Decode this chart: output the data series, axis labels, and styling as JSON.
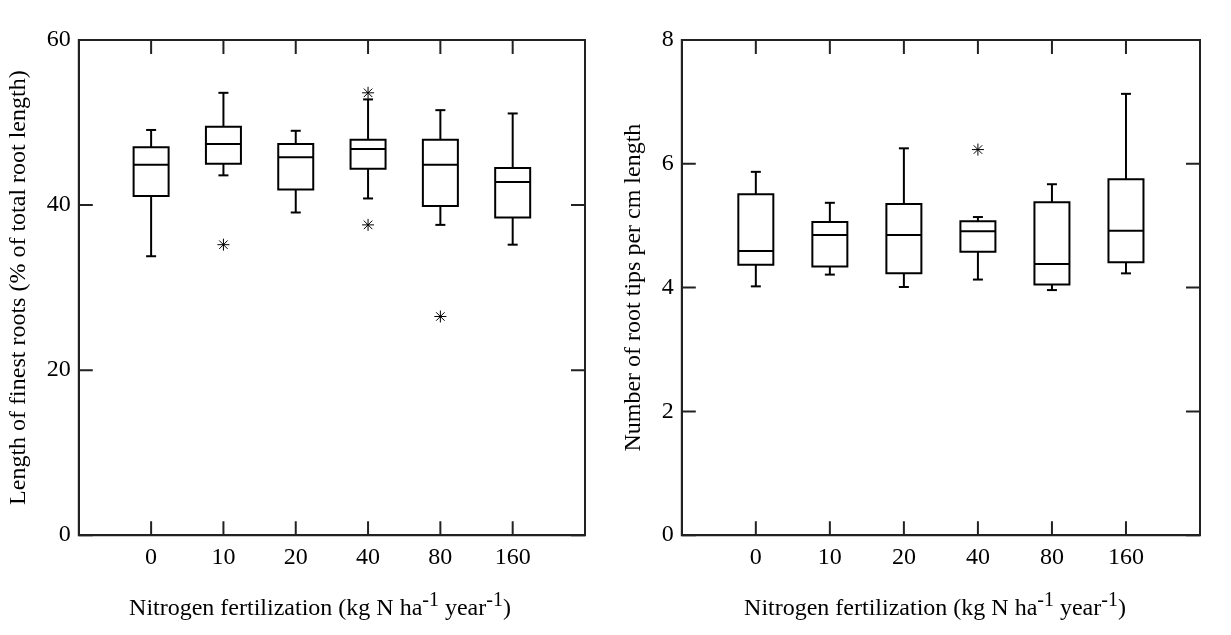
{
  "chart_data": [
    {
      "type": "box",
      "xlabel": "Nitrogen fertilization (kg N ha$^{-1}$ year$^{-1}$)",
      "ylabel": "Length of finest roots (% of total root length)",
      "categories": [
        "0",
        "10",
        "20",
        "40",
        "80",
        "160"
      ],
      "ylim": [
        0,
        60
      ],
      "yticks": [
        0,
        20,
        40,
        60
      ],
      "grid": false,
      "series": [
        {
          "color": "#000000",
          "boxes": [
            {
              "low": 33.8,
              "q1": 41.1,
              "median": 44.9,
              "q3": 47.0,
              "high": 49.1
            },
            {
              "low": 43.6,
              "q1": 45.0,
              "median": 47.4,
              "q3": 49.5,
              "high": 53.6,
              "outliers": [
                35.2
              ]
            },
            {
              "low": 39.1,
              "q1": 41.9,
              "median": 45.8,
              "q3": 47.4,
              "high": 49.0
            },
            {
              "low": 40.8,
              "q1": 44.4,
              "median": 46.8,
              "q3": 47.9,
              "high": 52.8,
              "outliers": [
                53.6,
                37.6
              ]
            },
            {
              "low": 37.6,
              "q1": 39.9,
              "median": 44.9,
              "q3": 47.9,
              "high": 51.5,
              "outliers": [
                26.5
              ]
            },
            {
              "low": 35.2,
              "q1": 38.5,
              "median": 42.8,
              "q3": 44.5,
              "high": 51.1
            }
          ]
        }
      ]
    },
    {
      "type": "box",
      "xlabel": "Nitrogen fertilization (kg N ha$^{-1}$ year$^{-1}$)",
      "ylabel": "Number of root tips per cm length",
      "categories": [
        "0",
        "10",
        "20",
        "40",
        "80",
        "160"
      ],
      "ylim": [
        0,
        8
      ],
      "yticks": [
        0,
        2,
        4,
        6,
        8
      ],
      "grid": false,
      "series": [
        {
          "color": "#000000",
          "boxes": [
            {
              "low": 4.02,
              "q1": 4.37,
              "median": 4.59,
              "q3": 5.51,
              "high": 5.87
            },
            {
              "low": 4.21,
              "q1": 4.34,
              "median": 4.85,
              "q3": 5.06,
              "high": 5.37
            },
            {
              "low": 4.01,
              "q1": 4.23,
              "median": 4.85,
              "q3": 5.35,
              "high": 6.25
            },
            {
              "low": 4.13,
              "q1": 4.58,
              "median": 4.91,
              "q3": 5.07,
              "high": 5.14,
              "outliers": [
                6.23
              ]
            },
            {
              "low": 3.96,
              "q1": 4.05,
              "median": 4.38,
              "q3": 5.38,
              "high": 5.67
            },
            {
              "low": 4.23,
              "q1": 4.41,
              "median": 4.92,
              "q3": 5.75,
              "high": 7.13
            }
          ]
        }
      ]
    }
  ]
}
